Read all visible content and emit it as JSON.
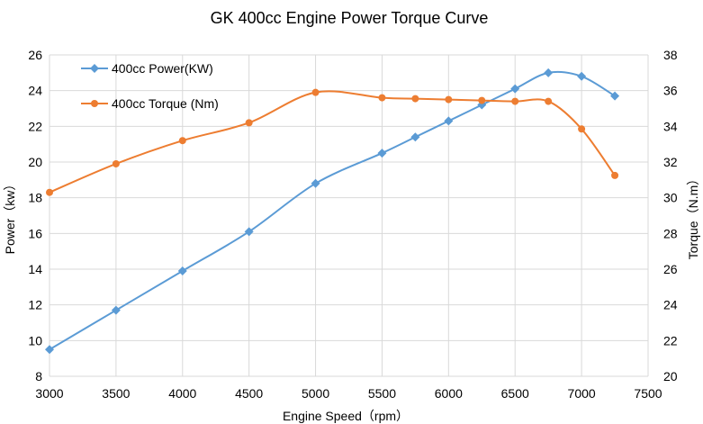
{
  "chart_data": {
    "type": "line",
    "title": "GK 400cc Engine Power Torque Curve",
    "xlabel": "Engine Speed（rpm）",
    "ylabel": "Power（kw）",
    "y2label": "Torque（N.m）",
    "xlim": [
      3000,
      7500
    ],
    "ylim": [
      8,
      26
    ],
    "y2lim": [
      20,
      38
    ],
    "xticks": [
      3000,
      3500,
      4000,
      4500,
      5000,
      5500,
      6000,
      6500,
      7000,
      7500
    ],
    "yticks": [
      8,
      10,
      12,
      14,
      16,
      18,
      20,
      22,
      24,
      26
    ],
    "y2ticks": [
      20,
      22,
      24,
      26,
      28,
      30,
      32,
      34,
      36,
      38
    ],
    "grid": true,
    "legend_position": "top-left",
    "series": [
      {
        "name": "400cc Power(KW)",
        "axis": "left",
        "color": "#5b9bd5",
        "marker": "diamond",
        "x": [
          3000,
          3500,
          4000,
          4500,
          5000,
          5500,
          5750,
          6000,
          6250,
          6500,
          6750,
          7000,
          7250
        ],
        "values": [
          9.5,
          11.7,
          13.9,
          16.1,
          18.8,
          20.5,
          21.4,
          22.3,
          23.2,
          24.1,
          25.0,
          24.8,
          23.7
        ]
      },
      {
        "name": "400cc Torque (Nm)",
        "axis": "right",
        "color": "#ed7d31",
        "marker": "circle",
        "x": [
          3000,
          3500,
          4000,
          4500,
          5000,
          5500,
          5750,
          6000,
          6250,
          6500,
          6750,
          7000,
          7250
        ],
        "values": [
          30.3,
          31.9,
          33.2,
          34.2,
          35.9,
          35.6,
          35.55,
          35.5,
          35.45,
          35.4,
          35.4,
          33.85,
          31.25
        ]
      }
    ]
  }
}
